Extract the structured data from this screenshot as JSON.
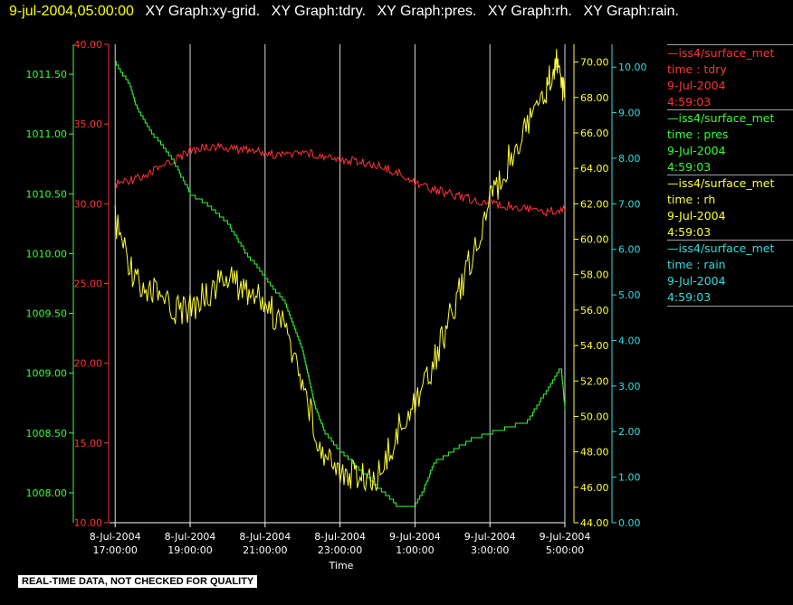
{
  "header": {
    "datetime": "9-jul-2004,05:00:00",
    "graphs": [
      "XY Graph:xy-grid.",
      "XY Graph:tdry.",
      "XY Graph:pres.",
      "XY Graph:rh.",
      "XY Graph:rain."
    ]
  },
  "footer": {
    "quality_note": "REAL-TIME DATA, NOT CHECKED FOR QUALITY"
  },
  "legend": [
    {
      "source": "—iss4/surface_met",
      "field": "time : tdry",
      "date": "9-Jul-2004",
      "time": "4:59:03",
      "color": "#ff3333"
    },
    {
      "source": "—iss4/surface_met",
      "field": "time : pres",
      "date": "9-Jul-2004",
      "time": "4:59:03",
      "color": "#33ff33"
    },
    {
      "source": "—iss4/surface_met",
      "field": "time : rh",
      "date": "9-Jul-2004",
      "time": "4:59:03",
      "color": "#ffff33"
    },
    {
      "source": "—iss4/surface_met",
      "field": "time : rain",
      "date": "9-Jul-2004",
      "time": "4:59:03",
      "color": "#33dddd"
    }
  ],
  "chart_data": {
    "type": "line",
    "xlabel": "Time",
    "x_ticks": [
      [
        "8-Jul-2004",
        "17:00:00"
      ],
      [
        "8-Jul-2004",
        "19:00:00"
      ],
      [
        "8-Jul-2004",
        "21:00:00"
      ],
      [
        "8-Jul-2004",
        "23:00:00"
      ],
      [
        "9-Jul-2004",
        "1:00:00"
      ],
      [
        "9-Jul-2004",
        "3:00:00"
      ],
      [
        "9-Jul-2004",
        "5:00:00"
      ]
    ],
    "x_range_hours": [
      16.85,
      29.0
    ],
    "grid": "vertical lines at each x tick",
    "axes": {
      "tdry": {
        "side": "left-outer",
        "color": "#ff3333",
        "ylim": [
          10,
          40
        ],
        "ticks": [
          "10.00",
          "15.00",
          "20.00",
          "25.00",
          "30.00",
          "35.00",
          "40.00"
        ]
      },
      "pres": {
        "side": "left-inner",
        "color": "#33ff33",
        "ylim": [
          1007.75,
          1011.75
        ],
        "ticks": [
          "1008.00",
          "1008.50",
          "1009.00",
          "1009.50",
          "1010.00",
          "1010.50",
          "1011.00",
          "1011.50"
        ]
      },
      "rh": {
        "side": "right-inner",
        "color": "#ffff33",
        "ylim": [
          44,
          71
        ],
        "ticks": [
          "44.00",
          "46.00",
          "48.00",
          "50.00",
          "52.00",
          "54.00",
          "56.00",
          "58.00",
          "60.00",
          "62.00",
          "64.00",
          "66.00",
          "68.00",
          "70.00"
        ]
      },
      "rain": {
        "side": "right-outer",
        "color": "#33dddd",
        "ylim": [
          0,
          10.5
        ],
        "ticks": [
          "0.00",
          "1.00",
          "2.00",
          "3.00",
          "4.00",
          "5.00",
          "6.00",
          "7.00",
          "8.00",
          "9.00",
          "10.00"
        ]
      }
    },
    "series": [
      {
        "name": "tdry",
        "axis": "tdry",
        "color": "#ff3333",
        "points": [
          [
            17.0,
            31.2
          ],
          [
            17.5,
            31.6
          ],
          [
            18.0,
            32.0
          ],
          [
            18.5,
            32.6
          ],
          [
            19.0,
            33.3
          ],
          [
            19.5,
            33.6
          ],
          [
            20.0,
            33.5
          ],
          [
            20.5,
            33.4
          ],
          [
            21.0,
            33.2
          ],
          [
            21.5,
            33.0
          ],
          [
            22.0,
            33.3
          ],
          [
            22.5,
            33.0
          ],
          [
            23.0,
            32.8
          ],
          [
            23.5,
            32.6
          ],
          [
            24.0,
            32.4
          ],
          [
            24.5,
            32.0
          ],
          [
            25.0,
            31.4
          ],
          [
            25.5,
            30.9
          ],
          [
            26.0,
            30.6
          ],
          [
            26.5,
            30.3
          ],
          [
            27.0,
            30.0
          ],
          [
            27.5,
            29.9
          ],
          [
            28.0,
            29.7
          ],
          [
            28.5,
            29.5
          ],
          [
            29.0,
            29.6
          ]
        ]
      },
      {
        "name": "pres",
        "axis": "pres",
        "color": "#33ff33",
        "points": [
          [
            17.0,
            1011.6
          ],
          [
            17.4,
            1011.4
          ],
          [
            17.6,
            1011.2
          ],
          [
            18.0,
            1011.0
          ],
          [
            18.5,
            1010.8
          ],
          [
            19.0,
            1010.5
          ],
          [
            19.5,
            1010.4
          ],
          [
            20.0,
            1010.25
          ],
          [
            20.5,
            1010.0
          ],
          [
            21.0,
            1009.8
          ],
          [
            21.5,
            1009.6
          ],
          [
            22.0,
            1009.2
          ],
          [
            22.3,
            1008.75
          ],
          [
            22.6,
            1008.5
          ],
          [
            23.0,
            1008.35
          ],
          [
            23.5,
            1008.2
          ],
          [
            24.0,
            1008.05
          ],
          [
            24.5,
            1007.9
          ],
          [
            25.0,
            1007.9
          ],
          [
            25.2,
            1008.0
          ],
          [
            25.5,
            1008.25
          ],
          [
            26.0,
            1008.35
          ],
          [
            26.5,
            1008.45
          ],
          [
            27.0,
            1008.5
          ],
          [
            27.5,
            1008.55
          ],
          [
            28.0,
            1008.6
          ],
          [
            28.5,
            1008.85
          ],
          [
            28.9,
            1009.05
          ],
          [
            29.0,
            1008.7
          ]
        ]
      },
      {
        "name": "rh",
        "axis": "rh",
        "color": "#ffff33",
        "points": [
          [
            17.0,
            61.0
          ],
          [
            17.5,
            58.0
          ],
          [
            18.0,
            57.0
          ],
          [
            18.5,
            56.0
          ],
          [
            19.0,
            56.0
          ],
          [
            19.5,
            57.0
          ],
          [
            20.0,
            58.0
          ],
          [
            20.5,
            57.0
          ],
          [
            21.0,
            56.5
          ],
          [
            21.5,
            55.0
          ],
          [
            22.0,
            52.0
          ],
          [
            22.5,
            48.0
          ],
          [
            23.0,
            47.0
          ],
          [
            23.5,
            46.5
          ],
          [
            24.0,
            46.5
          ],
          [
            24.5,
            49.0
          ],
          [
            25.0,
            51.0
          ],
          [
            25.5,
            53.0
          ],
          [
            26.0,
            56.0
          ],
          [
            26.5,
            59.0
          ],
          [
            27.0,
            62.0
          ],
          [
            27.5,
            64.5
          ],
          [
            28.0,
            66.5
          ],
          [
            28.5,
            68.5
          ],
          [
            28.8,
            70.0
          ],
          [
            29.0,
            68.0
          ]
        ]
      },
      {
        "name": "rain",
        "axis": "rain",
        "color": "#33dddd",
        "points": [
          [
            16.85,
            0.0
          ],
          [
            29.0,
            0.0
          ]
        ]
      }
    ]
  }
}
